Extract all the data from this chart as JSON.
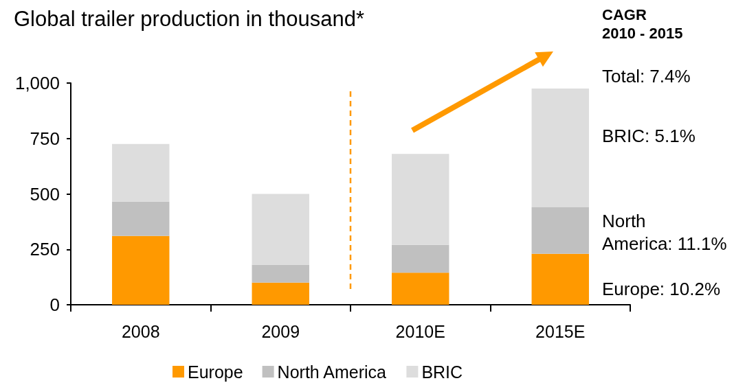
{
  "chart_data": {
    "type": "bar",
    "title": "Global trailer production in thousand*",
    "categories": [
      "2008",
      "2009",
      "2010E",
      "2015E"
    ],
    "series": [
      {
        "name": "Europe",
        "color": "#ff9900",
        "values": [
          310,
          100,
          145,
          230
        ]
      },
      {
        "name": "North America",
        "color": "#c0c0c0",
        "values": [
          155,
          80,
          125,
          210
        ]
      },
      {
        "name": "BRIC",
        "color": "#dddddd",
        "values": [
          260,
          320,
          410,
          535
        ]
      }
    ],
    "stacked": true,
    "ylim": [
      0,
      1000
    ],
    "yticks": [
      0,
      250,
      500,
      750,
      {
        "value": 1000,
        "label": "1,000"
      }
    ],
    "legend": "bottom",
    "annotations": [
      "CAGR\n2010 - 2015",
      "Total: 7.4%",
      "BRIC: 5.1%",
      "North\nAmerica: 11.1%",
      "Europe: 10.2%"
    ]
  }
}
